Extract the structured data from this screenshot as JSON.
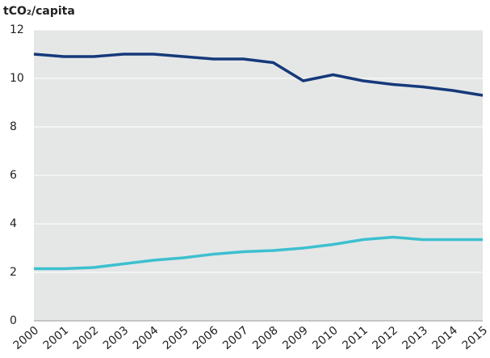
{
  "chart_data": {
    "type": "line",
    "y_label": "tCO₂/capita",
    "categories": [
      "2000",
      "2001",
      "2002",
      "2003",
      "2004",
      "2005",
      "2006",
      "2007",
      "2008",
      "2009",
      "2010",
      "2011",
      "2012",
      "2013",
      "2014",
      "2015"
    ],
    "series": [
      {
        "color": "#15397a",
        "values": [
          11.0,
          10.9,
          10.9,
          11.0,
          11.0,
          10.9,
          10.8,
          10.8,
          10.65,
          9.9,
          10.15,
          9.9,
          9.75,
          9.65,
          9.5,
          9.3
        ]
      },
      {
        "color": "#3dc0cf",
        "values": [
          2.15,
          2.15,
          2.2,
          2.35,
          2.5,
          2.6,
          2.75,
          2.85,
          2.9,
          3.0,
          3.15,
          3.35,
          3.45,
          3.35,
          3.35,
          3.35
        ]
      }
    ],
    "ylim": [
      0,
      12
    ],
    "yticks": [
      0,
      2,
      4,
      6,
      8,
      10,
      12
    ],
    "grid": true
  }
}
